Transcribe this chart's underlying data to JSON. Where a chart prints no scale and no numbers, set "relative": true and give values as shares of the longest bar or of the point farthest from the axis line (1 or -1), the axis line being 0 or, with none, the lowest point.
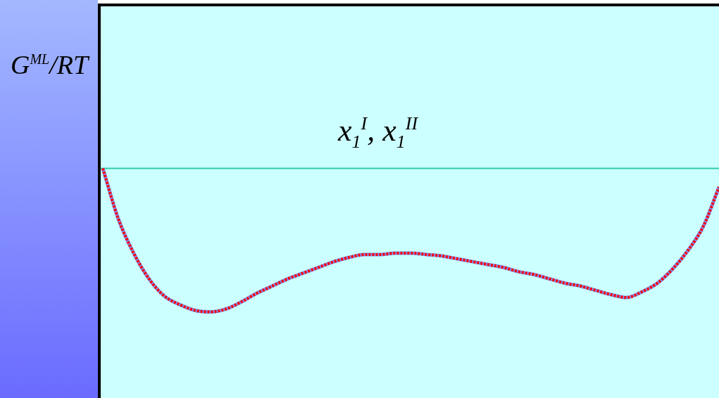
{
  "chart_data": {
    "type": "line",
    "relative": true,
    "ylabel": "G$^{ML}$/RT",
    "annotations": [
      "x$_{1}$$^{I}$, x$_{1}$$^{II}$"
    ],
    "categories": [
      null,
      null,
      null,
      null,
      null,
      null,
      null,
      null,
      null,
      null,
      null,
      null,
      null,
      null,
      null,
      null,
      null,
      null,
      null,
      null,
      null,
      null,
      null,
      null,
      null,
      null,
      null,
      null,
      null,
      null,
      null,
      null,
      null,
      null,
      null,
      null,
      null,
      null,
      null,
      null,
      null
    ],
    "series": [
      {
        "color": "#7b8ff0",
        "line_style": "solid",
        "values": [
          0,
          -0.35,
          -0.59,
          -0.77,
          -0.89,
          -0.95,
          -0.99,
          -1,
          -0.98,
          -0.93,
          -0.87,
          -0.82,
          -0.77,
          -0.73,
          -0.69,
          -0.65,
          -0.62,
          -0.6,
          -0.6,
          -0.59,
          -0.59,
          -0.6,
          -0.61,
          -0.63,
          -0.65,
          -0.67,
          -0.69,
          -0.72,
          -0.74,
          -0.77,
          -0.8,
          -0.82,
          -0.85,
          -0.88,
          -0.9,
          -0.86,
          -0.8,
          -0.7,
          -0.57,
          -0.4,
          -0.13
        ]
      },
      {
        "color": "#ff0000",
        "line_style": "dotted",
        "values": [
          0,
          -0.35,
          -0.59,
          -0.77,
          -0.89,
          -0.95,
          -0.99,
          -1,
          -0.98,
          -0.93,
          -0.87,
          -0.82,
          -0.77,
          -0.73,
          -0.69,
          -0.65,
          -0.62,
          -0.6,
          -0.6,
          -0.59,
          -0.59,
          -0.6,
          -0.61,
          -0.63,
          -0.65,
          -0.67,
          -0.69,
          -0.72,
          -0.74,
          -0.77,
          -0.8,
          -0.82,
          -0.85,
          -0.88,
          -0.9,
          -0.86,
          -0.8,
          -0.7,
          -0.57,
          -0.4,
          -0.13
        ]
      }
    ],
    "ref_lines": [
      {
        "axis": "y",
        "value": 0,
        "color": "#33ccaa"
      }
    ],
    "marker": "none",
    "legend": false
  }
}
